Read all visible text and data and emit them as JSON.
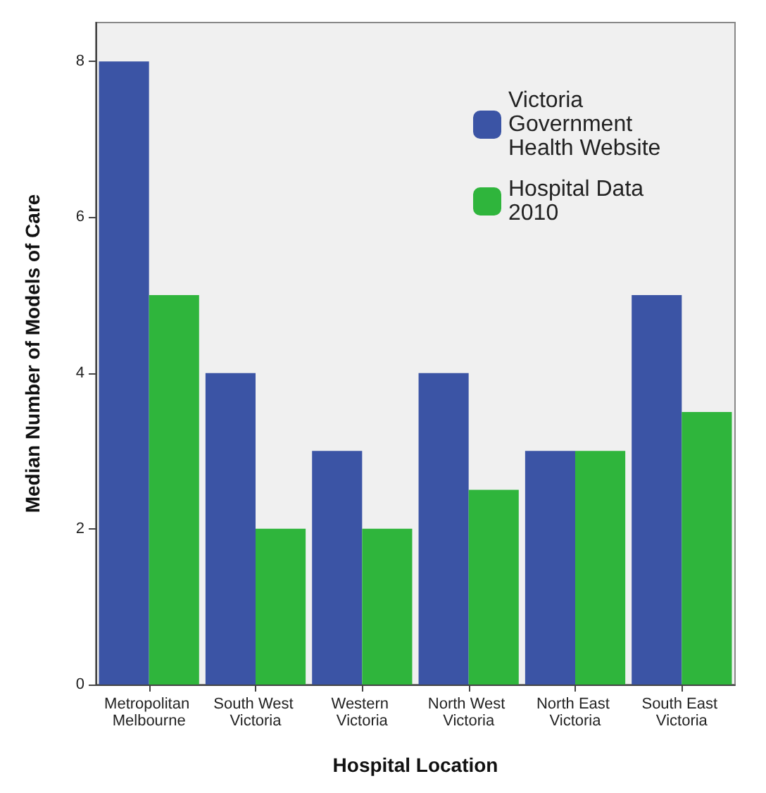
{
  "chart_data": {
    "type": "bar",
    "xlabel": "Hospital Location",
    "ylabel": "Median Number of Models of Care",
    "categories": [
      "Metropolitan Melbourne",
      "South West Victoria",
      "Western Victoria",
      "North West Victoria",
      "North East Victoria",
      "South East Victoria"
    ],
    "series": [
      {
        "name": "Victoria Government Health Website",
        "color": "#3b54a5",
        "values": [
          8,
          4,
          3,
          4,
          3,
          5
        ]
      },
      {
        "name": "Hospital Data 2010",
        "color": "#2fb53c",
        "values": [
          5,
          2,
          2,
          2.5,
          3,
          3.5
        ]
      }
    ],
    "ylim": [
      0,
      8.5
    ],
    "yticks": [
      0,
      2,
      4,
      6,
      8
    ],
    "grid": false,
    "legend": "top right"
  }
}
